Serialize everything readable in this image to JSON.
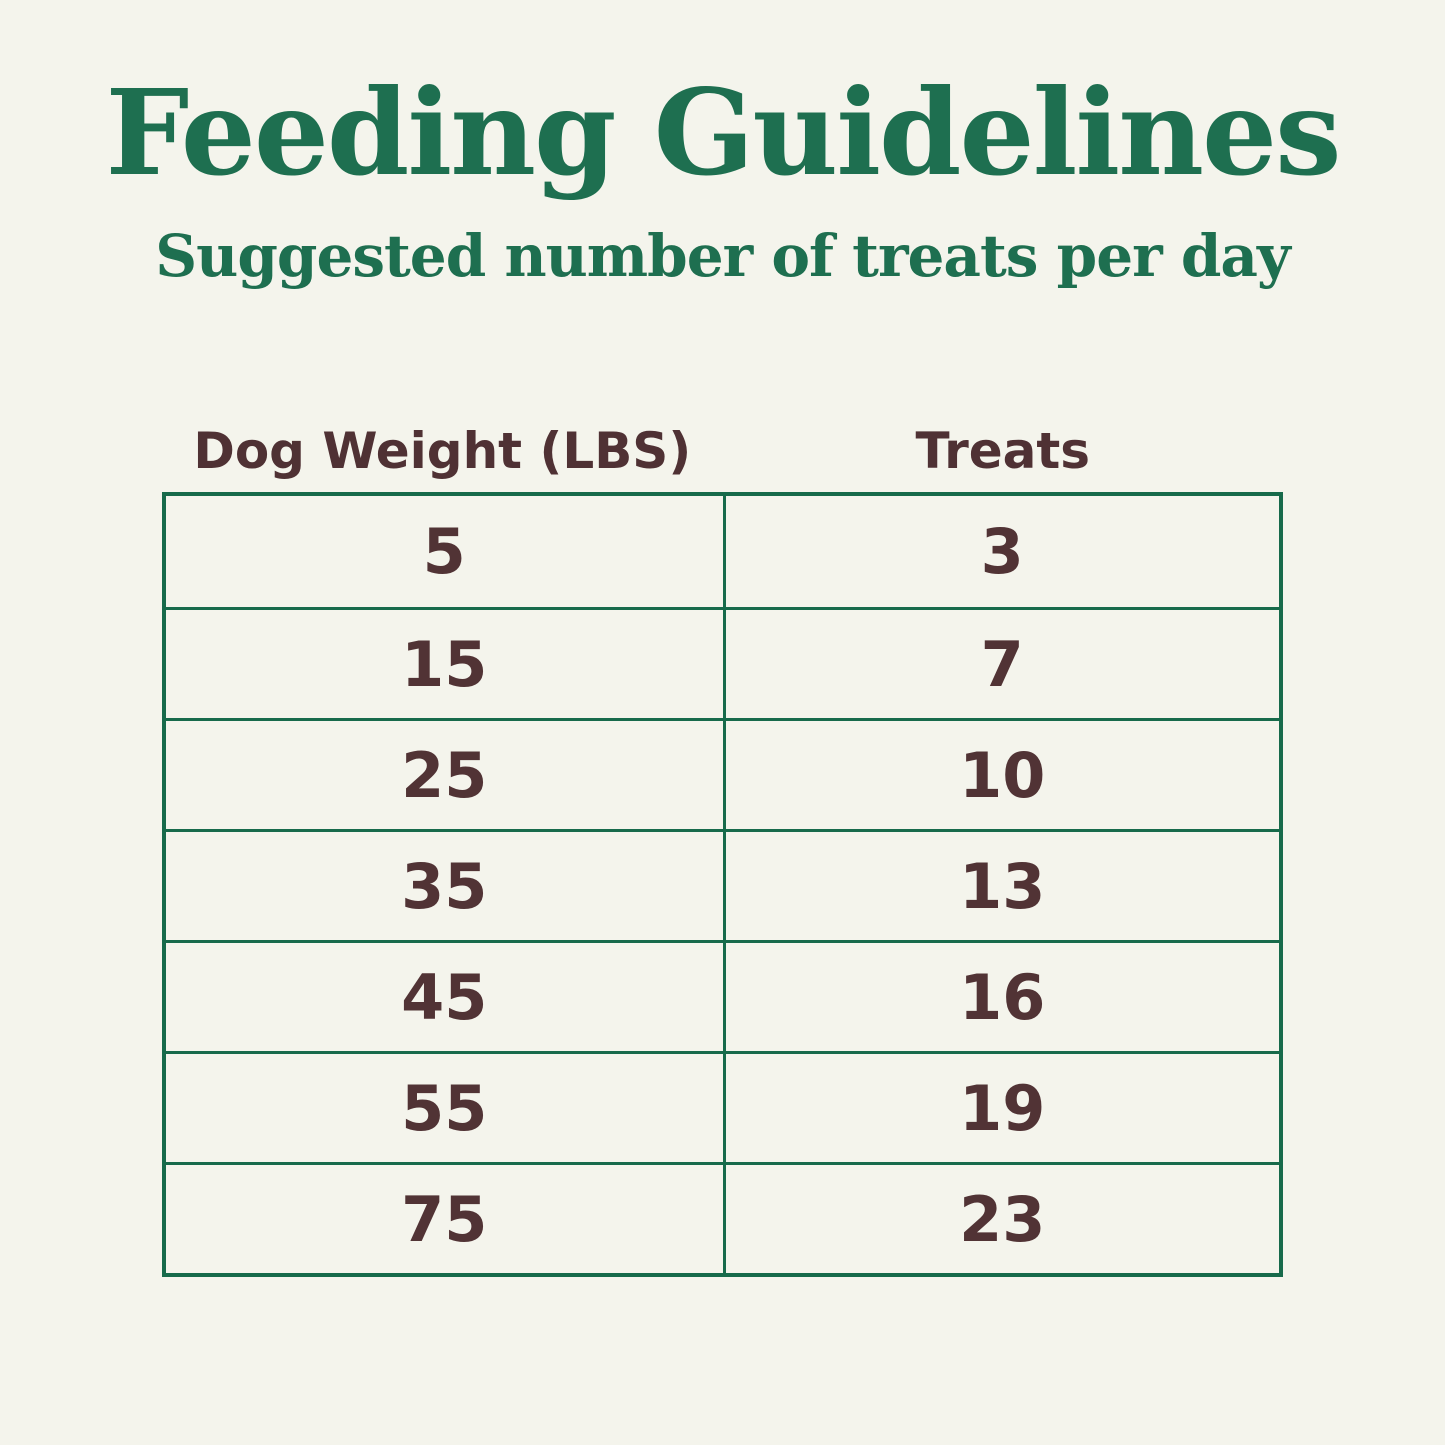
{
  "page": {
    "title": "Feeding Guidelines",
    "subtitle": "Suggested number of treats per day"
  },
  "colors": {
    "background": "#f4f4ec",
    "heading_green": "#1e6f50",
    "table_border_green": "#176a4b",
    "text_brown": "#513335"
  },
  "table": {
    "headers": [
      "Dog Weight (LBS)",
      "Treats"
    ],
    "rows": [
      {
        "weight": "5",
        "treats": "3"
      },
      {
        "weight": "15",
        "treats": "7"
      },
      {
        "weight": "25",
        "treats": "10"
      },
      {
        "weight": "35",
        "treats": "13"
      },
      {
        "weight": "45",
        "treats": "16"
      },
      {
        "weight": "55",
        "treats": "19"
      },
      {
        "weight": "75",
        "treats": "23"
      }
    ]
  },
  "chart_data": {
    "type": "table",
    "title": "Feeding Guidelines",
    "subtitle": "Suggested number of treats per day",
    "columns": [
      "Dog Weight (LBS)",
      "Treats"
    ],
    "categories": [
      5,
      15,
      25,
      35,
      45,
      55,
      75
    ],
    "values": [
      3,
      7,
      10,
      13,
      16,
      19,
      23
    ]
  }
}
